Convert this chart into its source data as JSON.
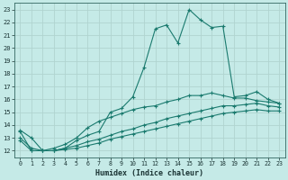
{
  "xlabel": "Humidex (Indice chaleur)",
  "background_color": "#c5eae7",
  "grid_color": "#b0d4d0",
  "line_color": "#1a7a6e",
  "xlim": [
    -0.5,
    23.5
  ],
  "ylim": [
    11.5,
    23.5
  ],
  "xticks": [
    0,
    1,
    2,
    3,
    4,
    5,
    6,
    7,
    8,
    9,
    10,
    11,
    12,
    13,
    14,
    15,
    16,
    17,
    18,
    19,
    20,
    21,
    22,
    23
  ],
  "yticks": [
    12,
    13,
    14,
    15,
    16,
    17,
    18,
    19,
    20,
    21,
    22,
    23
  ],
  "line1_y": [
    13.6,
    13.0,
    12.0,
    12.0,
    12.2,
    12.8,
    13.2,
    13.5,
    15.0,
    15.3,
    16.2,
    18.5,
    21.5,
    21.8,
    20.4,
    23.0,
    22.2,
    21.6,
    21.7,
    16.2,
    16.3,
    16.6,
    16.0,
    15.7
  ],
  "line2_y": [
    13.5,
    12.0,
    12.0,
    12.2,
    12.5,
    13.0,
    13.8,
    14.3,
    14.6,
    14.9,
    15.2,
    15.4,
    15.5,
    15.8,
    16.0,
    16.3,
    16.3,
    16.5,
    16.3,
    16.1,
    16.1,
    15.9,
    15.8,
    15.7
  ],
  "line3_y": [
    13.0,
    12.2,
    12.0,
    12.0,
    12.2,
    12.4,
    12.7,
    12.9,
    13.2,
    13.5,
    13.7,
    14.0,
    14.2,
    14.5,
    14.7,
    14.9,
    15.1,
    15.3,
    15.5,
    15.5,
    15.6,
    15.7,
    15.5,
    15.4
  ],
  "line4_y": [
    12.8,
    12.0,
    12.0,
    12.0,
    12.1,
    12.2,
    12.4,
    12.6,
    12.9,
    13.1,
    13.3,
    13.5,
    13.7,
    13.9,
    14.1,
    14.3,
    14.5,
    14.7,
    14.9,
    15.0,
    15.1,
    15.2,
    15.1,
    15.1
  ]
}
